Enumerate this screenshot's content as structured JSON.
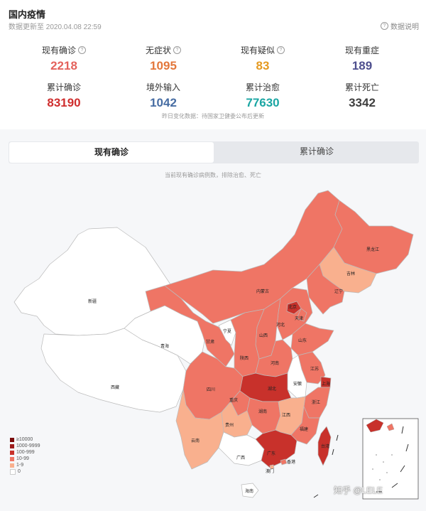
{
  "header": {
    "title": "国内疫情",
    "updated": "数据更新至 2020.04.08 22:59",
    "explain_label": "数据说明",
    "help_glyph": "?"
  },
  "stats": [
    {
      "label": "现有确诊",
      "value": "2218",
      "color": "#e4625c",
      "help": true
    },
    {
      "label": "无症状",
      "value": "1095",
      "color": "#e3773b",
      "help": true
    },
    {
      "label": "现有疑似",
      "value": "83",
      "color": "#e59a21",
      "help": true
    },
    {
      "label": "现有重症",
      "value": "189",
      "color": "#4e4f8e",
      "help": false
    },
    {
      "label": "累计确诊",
      "value": "83190",
      "color": "#cf2e2e",
      "help": false
    },
    {
      "label": "境外输入",
      "value": "1042",
      "color": "#476da3",
      "help": false
    },
    {
      "label": "累计治愈",
      "value": "77630",
      "color": "#1ba6a3",
      "help": false
    },
    {
      "label": "累计死亡",
      "value": "3342",
      "color": "#3e3e3e",
      "help": false
    }
  ],
  "note": "昨日变化数据：待国家卫健委公布后更新",
  "tabs": [
    {
      "label": "现有确诊",
      "active": true
    },
    {
      "label": "累计确诊",
      "active": false
    }
  ],
  "map_subtitle": "当前现有确诊病例数，排除治愈、死亡",
  "legend": [
    {
      "label": "≥10000",
      "color": "#7a0c0c"
    },
    {
      "label": "1000-9999",
      "color": "#9e1e1e"
    },
    {
      "label": "100-999",
      "color": "#c8312b"
    },
    {
      "label": "10-99",
      "color": "#ef7565"
    },
    {
      "label": "1-9",
      "color": "#f9b08e"
    },
    {
      "label": "0",
      "color": "#ffffff"
    }
  ],
  "provinces": {
    "xinjiang": "新疆",
    "xizang": "西藏",
    "qinghai": "青海",
    "gansu": "甘肃",
    "neimenggu": "内蒙古",
    "heilongjiang": "黑龙江",
    "jilin": "吉林",
    "liaoning": "辽宁",
    "beijing": "北京",
    "tianjin": "天津",
    "hebei": "河北",
    "shanxi": "山西",
    "shandong": "山东",
    "ningxia": "宁夏",
    "shaanxi": "陕西",
    "henan": "河南",
    "jiangsu": "江苏",
    "anhui": "安徽",
    "shanghai": "上海",
    "hubei": "湖北",
    "sichuan": "四川",
    "chongqing": "重庆",
    "zhejiang": "浙江",
    "hunan": "湖南",
    "jiangxi": "江西",
    "guizhou": "贵州",
    "yunnan": "云南",
    "fujian": "福建",
    "taiwan": "台湾",
    "guangxi": "广西",
    "guangdong": "广东",
    "aomen": "澳门",
    "xianggang": "香港",
    "hainan": "海南"
  },
  "watermark": "知乎 @LELE"
}
